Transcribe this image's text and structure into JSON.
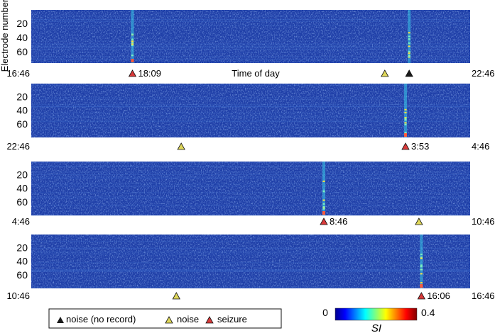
{
  "chart_data": {
    "type": "heatmap",
    "y_axis_label": "Electrode number",
    "x_axis_label": "Time of day",
    "y_ticks": [
      20,
      40,
      60
    ],
    "y_ticks_lower": [
      20,
      40,
      60
    ],
    "panels": [
      {
        "start": "16:46",
        "end": "22:46",
        "y_range": [
          1,
          76
        ],
        "y_ticks": [
          20,
          40,
          60
        ],
        "markers": [
          {
            "type": "seizure",
            "time": "18:09",
            "label": "18:09"
          },
          {
            "type": "noise",
            "time": "21:36",
            "label": ""
          },
          {
            "type": "noise-no-record",
            "time": "21:56",
            "label": ""
          }
        ]
      },
      {
        "start": "22:46",
        "end": "4:46",
        "y_range": [
          1,
          80
        ],
        "y_ticks": [
          20,
          40,
          60
        ],
        "markers": [
          {
            "type": "noise",
            "time": "0:49",
            "label": ""
          },
          {
            "type": "seizure",
            "time": "3:53",
            "label": "3:53"
          }
        ]
      },
      {
        "start": "4:46",
        "end": "10:46",
        "y_range": [
          1,
          80
        ],
        "y_ticks": [
          20,
          40,
          60
        ],
        "markers": [
          {
            "type": "seizure",
            "time": "8:46",
            "label": "8:46"
          },
          {
            "type": "noise",
            "time": "10:04",
            "label": ""
          }
        ]
      },
      {
        "start": "10:46",
        "end": "16:46",
        "y_range": [
          1,
          80
        ],
        "y_ticks": [
          20,
          40,
          60
        ],
        "markers": [
          {
            "type": "noise",
            "time": "12:45",
            "label": ""
          },
          {
            "type": "seizure",
            "time": "16:06",
            "label": "16:06"
          }
        ]
      }
    ],
    "colorbar": {
      "label": "SI",
      "min": 0,
      "max": 0.4,
      "min_label": "0",
      "max_label": "0.4",
      "colormap": [
        "#00008f",
        "#0000ff",
        "#00ffff",
        "#ffff00",
        "#ff0000",
        "#800000"
      ]
    },
    "legend": [
      {
        "type": "noise-no-record",
        "label": "noise (no record)",
        "color": "#1a1a1a"
      },
      {
        "type": "noise",
        "label": "noise",
        "color": "#e0d85a"
      },
      {
        "type": "seizure",
        "label": "seizure",
        "color": "#d93a3a"
      }
    ],
    "colors": {
      "background_field": "#1f3fa8",
      "marker_noise_no_record": "#1a1a1a",
      "marker_noise": "#e0d85a",
      "marker_seizure": "#d93a3a"
    }
  }
}
